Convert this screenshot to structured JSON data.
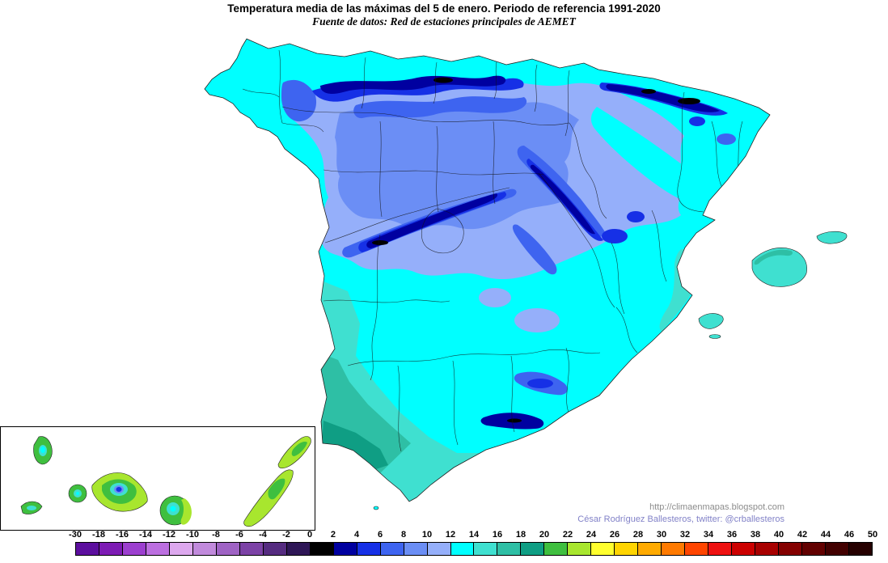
{
  "header": {
    "title": "Temperatura media de las máximas del 5 de enero. Periodo de referencia 1991-2020",
    "subtitle": "Fuente de datos: Red de estaciones principales de AEMET"
  },
  "attribution": {
    "url": "http://climaenmapas.blogspot.com",
    "author": "César Rodríguez Ballesteros, twitter: @crballesteros"
  },
  "legend": {
    "tick_labels": [
      "-30",
      "-18",
      "-16",
      "-14",
      "-12",
      "-10",
      "-8",
      "-6",
      "-4",
      "-2",
      "0",
      "2",
      "4",
      "6",
      "8",
      "10",
      "12",
      "14",
      "16",
      "18",
      "20",
      "22",
      "24",
      "26",
      "28",
      "30",
      "32",
      "34",
      "36",
      "38",
      "40",
      "42",
      "44",
      "46",
      "50"
    ],
    "cell_colors": [
      "#5C0E9E",
      "#7D1BB4",
      "#9C3FCF",
      "#BC6FE0",
      "#DDA8EE",
      "#C18ADC",
      "#9F63C4",
      "#7C42A6",
      "#552B80",
      "#2E1656",
      "#000000",
      "#0000A0",
      "#1630E6",
      "#3E64F0",
      "#6B8EF5",
      "#95AFFA",
      "#00FFFF",
      "#3FE0D0",
      "#2EBFA5",
      "#0F9E84",
      "#3FBF3F",
      "#A8E62E",
      "#FFFF2E",
      "#FFD400",
      "#FFAA00",
      "#FF7A00",
      "#FF4500",
      "#EE1111",
      "#CC0000",
      "#A80000",
      "#840000",
      "#620000",
      "#420000",
      "#260000"
    ]
  },
  "map": {
    "sea_color": "#FFFFFF",
    "coastline_color": "#222222",
    "boundary_color": "#111111"
  }
}
